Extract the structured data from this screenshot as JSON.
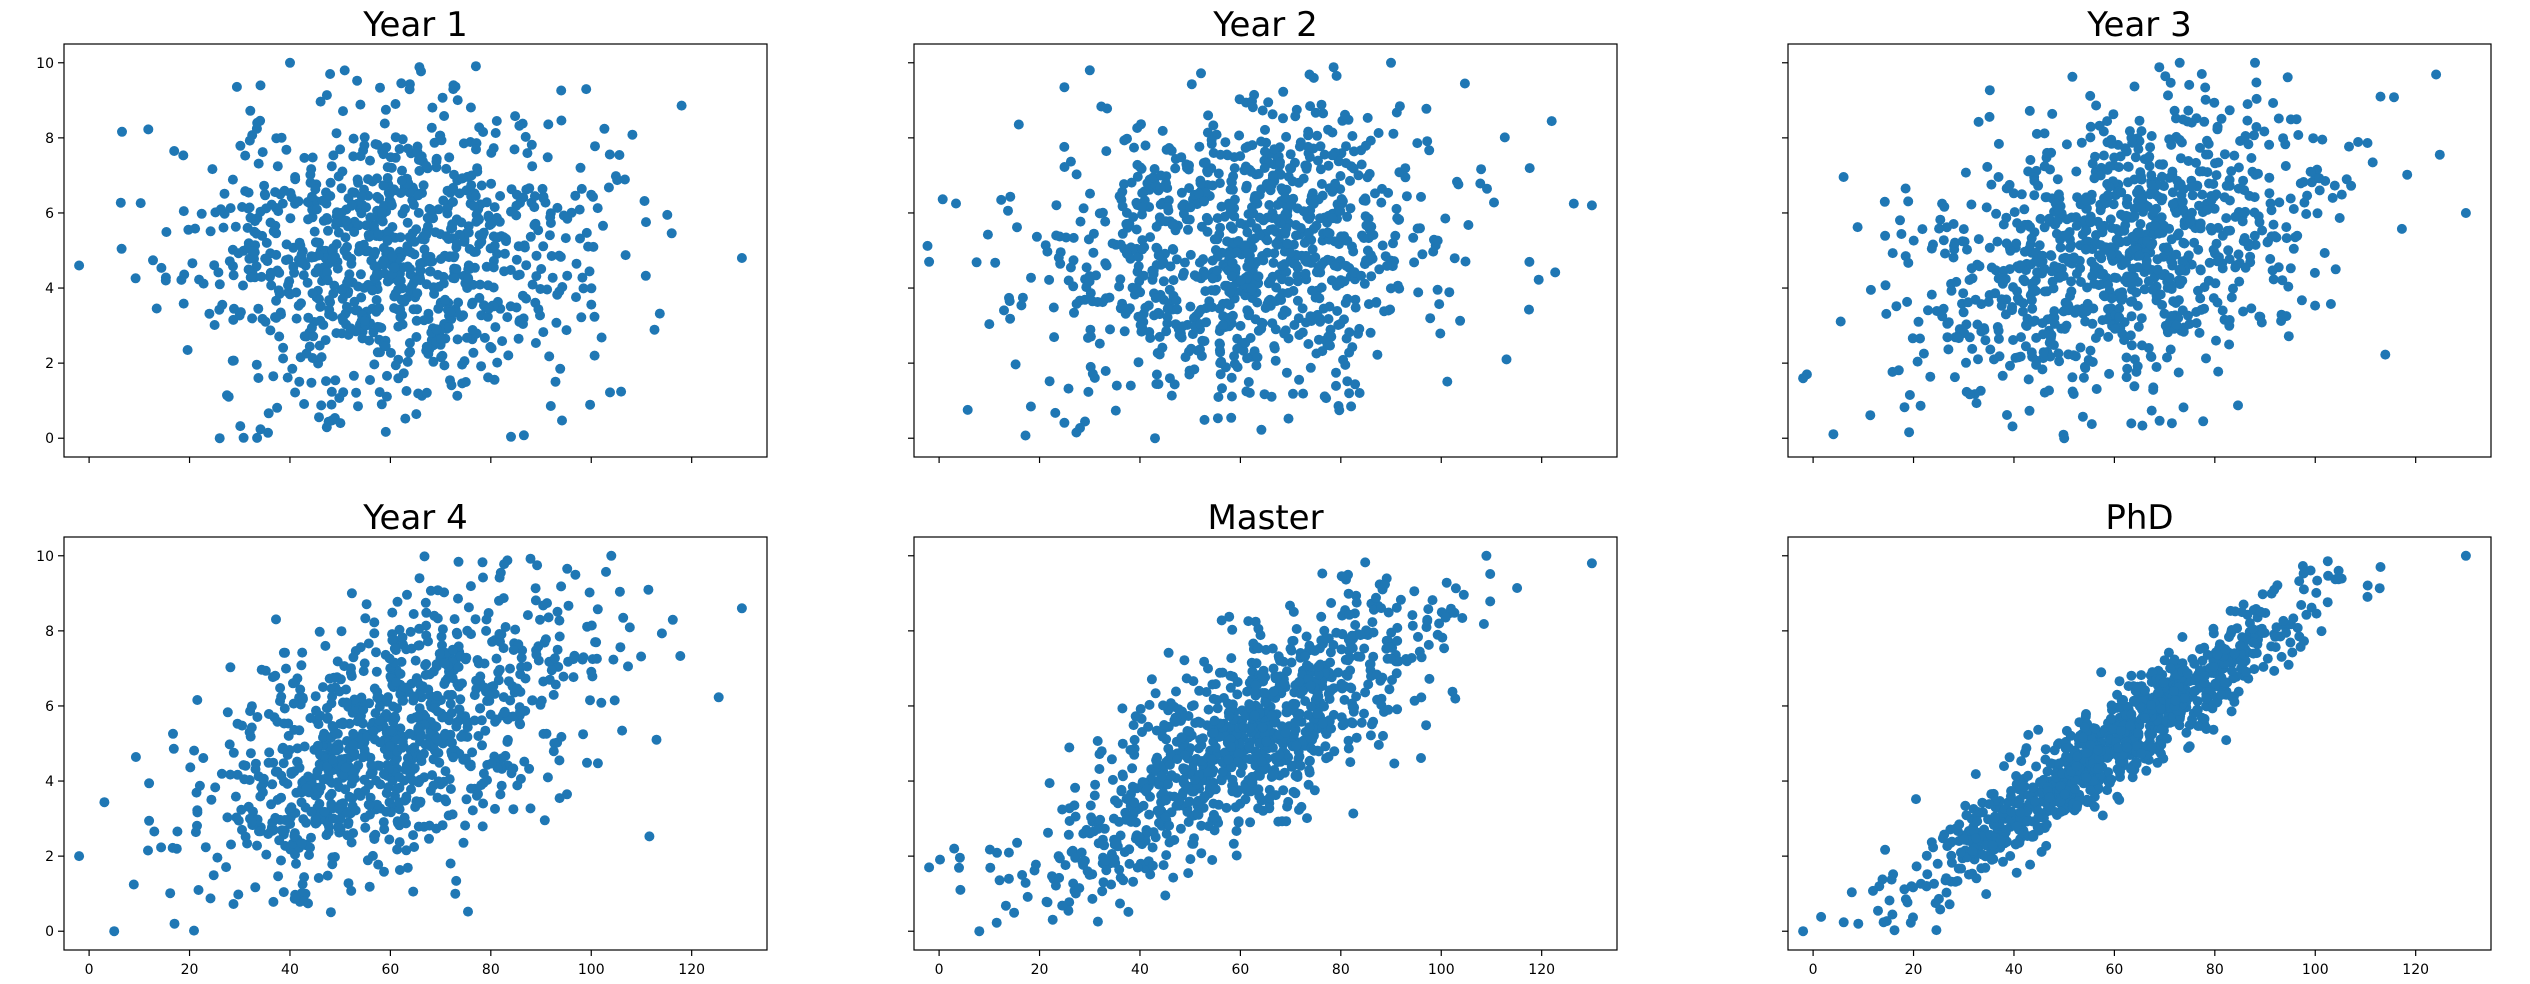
{
  "figure": {
    "layout": "2x3 grid",
    "shared_x_axis": true,
    "shared_y_axis": true,
    "marker_color": "#1f77b4"
  },
  "chart_data": [
    {
      "type": "scatter",
      "title": "Year 1",
      "xlim": [
        -5,
        135
      ],
      "ylim": [
        -0.5,
        10.5
      ],
      "xticks": [
        0,
        20,
        40,
        60,
        80,
        100,
        120
      ],
      "yticks": [
        0,
        2,
        4,
        6,
        8,
        10
      ],
      "show_x_tick_labels": false,
      "show_y_tick_labels": true,
      "point_count": 1000,
      "data_generation": {
        "x_mean": 60,
        "x_sd": 20,
        "y_mean": 5,
        "y_sd": 2,
        "correlation": 0.05,
        "seed": 11
      },
      "marked_points": [
        [
          -2,
          4.6
        ],
        [
          130,
          4.8
        ],
        [
          26,
          0.0
        ],
        [
          40,
          10.0
        ],
        [
          48,
          9.7
        ],
        [
          99,
          9.3
        ]
      ]
    },
    {
      "type": "scatter",
      "title": "Year 2",
      "xlim": [
        -5,
        135
      ],
      "ylim": [
        -0.5,
        10.5
      ],
      "xticks": [
        0,
        20,
        40,
        60,
        80,
        100,
        120
      ],
      "yticks": [
        0,
        2,
        4,
        6,
        8,
        10
      ],
      "show_x_tick_labels": false,
      "show_y_tick_labels": false,
      "point_count": 1000,
      "data_generation": {
        "x_mean": 60,
        "x_sd": 20,
        "y_mean": 5,
        "y_sd": 2,
        "correlation": 0.2,
        "seed": 22
      },
      "marked_points": [
        [
          -2,
          4.7
        ],
        [
          130,
          6.2
        ],
        [
          43,
          0.0
        ],
        [
          90,
          10.0
        ],
        [
          30,
          9.8
        ],
        [
          113,
          2.1
        ]
      ]
    },
    {
      "type": "scatter",
      "title": "Year 3",
      "xlim": [
        -5,
        135
      ],
      "ylim": [
        -0.5,
        10.5
      ],
      "xticks": [
        0,
        20,
        40,
        60,
        80,
        100,
        120
      ],
      "yticks": [
        0,
        2,
        4,
        6,
        8,
        10
      ],
      "show_x_tick_labels": false,
      "show_y_tick_labels": false,
      "point_count": 1000,
      "data_generation": {
        "x_mean": 60,
        "x_sd": 20,
        "y_mean": 5,
        "y_sd": 2,
        "correlation": 0.35,
        "seed": 33
      },
      "marked_points": [
        [
          -2,
          1.6
        ],
        [
          130,
          6.0
        ],
        [
          73,
          10.0
        ],
        [
          88,
          10.0
        ],
        [
          50,
          0.0
        ],
        [
          113,
          9.1
        ]
      ]
    },
    {
      "type": "scatter",
      "title": "Year 4",
      "xlim": [
        -5,
        135
      ],
      "ylim": [
        -0.5,
        10.5
      ],
      "xticks": [
        0,
        20,
        40,
        60,
        80,
        100,
        120
      ],
      "yticks": [
        0,
        2,
        4,
        6,
        8,
        10
      ],
      "show_x_tick_labels": true,
      "show_y_tick_labels": true,
      "point_count": 1000,
      "data_generation": {
        "x_mean": 60,
        "x_sd": 20,
        "y_mean": 5,
        "y_sd": 2,
        "correlation": 0.55,
        "seed": 44
      },
      "marked_points": [
        [
          -2,
          2.0
        ],
        [
          5,
          0.0
        ],
        [
          130,
          8.6
        ],
        [
          104,
          10.0
        ],
        [
          17,
          0.2
        ],
        [
          113,
          5.1
        ]
      ]
    },
    {
      "type": "scatter",
      "title": "Master",
      "xlim": [
        -5,
        135
      ],
      "ylim": [
        -0.5,
        10.5
      ],
      "xticks": [
        0,
        20,
        40,
        60,
        80,
        100,
        120
      ],
      "yticks": [
        0,
        2,
        4,
        6,
        8,
        10
      ],
      "show_x_tick_labels": true,
      "show_y_tick_labels": false,
      "point_count": 1000,
      "data_generation": {
        "x_mean": 60,
        "x_sd": 20,
        "y_mean": 5,
        "y_sd": 2,
        "correlation": 0.8,
        "seed": 55
      },
      "marked_points": [
        [
          -2,
          1.7
        ],
        [
          8,
          0.0
        ],
        [
          130,
          9.8
        ],
        [
          109,
          10.0
        ],
        [
          3,
          2.2
        ]
      ]
    },
    {
      "type": "scatter",
      "title": "PhD",
      "xlim": [
        -5,
        135
      ],
      "ylim": [
        -0.5,
        10.5
      ],
      "xticks": [
        0,
        20,
        40,
        60,
        80,
        100,
        120
      ],
      "yticks": [
        0,
        2,
        4,
        6,
        8,
        10
      ],
      "show_x_tick_labels": true,
      "show_y_tick_labels": false,
      "point_count": 1000,
      "data_generation": {
        "x_mean": 60,
        "x_sd": 20,
        "y_mean": 5,
        "y_sd": 2,
        "correlation": 0.95,
        "seed": 66
      },
      "marked_points": [
        [
          -2,
          0.0
        ],
        [
          130,
          10.0
        ],
        [
          113,
          9.7
        ],
        [
          9,
          0.2
        ]
      ]
    }
  ]
}
